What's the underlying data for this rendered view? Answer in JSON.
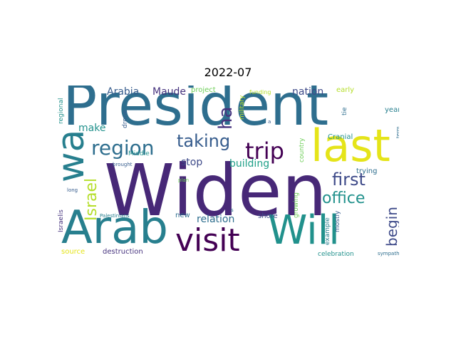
{
  "title": "2022-07",
  "colors": {
    "purple_dark": "#472877",
    "purple": "#46337e",
    "deep_purple": "#440154",
    "blue_purple": "#3e4a89",
    "slate": "#365c8d",
    "teal_blue": "#2e6e8e",
    "teal": "#277f8e",
    "teal_green": "#21918c",
    "green_teal": "#1fa088",
    "green": "#35b779",
    "light_green": "#6ece58",
    "lime": "#b5de2b",
    "yellow": "#e5e419"
  },
  "words": {
    "president": "President",
    "widen": "Widen",
    "arab": "Arab",
    "will": "Will",
    "last": "last",
    "wa": "wa",
    "visit": "visit",
    "trip": "trip",
    "region": "region",
    "first": "first",
    "taking": "taking",
    "office": "office",
    "ha": "ha",
    "israel": "Israel",
    "begin": "begin",
    "arabia": "Arabia",
    "maude": "Maude",
    "nation": "nation",
    "make": "make",
    "stop": "stop",
    "building": "building",
    "relation": "relation",
    "project": "project",
    "military": "military",
    "funding": "funding",
    "early": "early",
    "year": "year",
    "tie": "tie",
    "term": "term",
    "regional": "regional",
    "drone": "drone",
    "middle": "Middle",
    "brought": "brought",
    "plan": "plan",
    "long": "long",
    "israelis": "Israelis",
    "palestinians": "Palestinians",
    "new": "new",
    "shore": "shore",
    "source": "source",
    "destruction": "destruction",
    "celebration": "celebration",
    "sympathy": "sympathy",
    "example": "example",
    "mostly": "mostly",
    "growing": "growing",
    "country": "country",
    "cranial": "Cranial",
    "trying": "trying",
    "s": "s",
    "a": "a"
  }
}
